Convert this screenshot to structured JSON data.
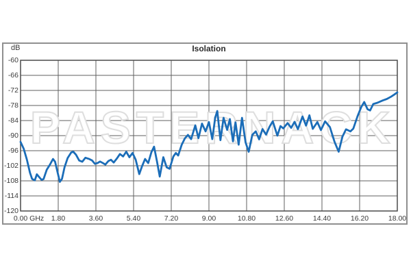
{
  "chart": {
    "title": "Isolation",
    "unit_label": "dB",
    "watermark": "PASTERNACK",
    "colors": {
      "line": "#1b6db8",
      "grid": "#5f5f5f",
      "plot_outline": "#4a4a4a",
      "outer_border": "#8f8f8f",
      "text": "#3a3a3a",
      "watermark_outline": "#dedede"
    },
    "x_axis": {
      "labels": [
        "0.00 GHz",
        "1.80",
        "3.60",
        "5.40",
        "7.20",
        "9.00",
        "10.80",
        "12.60",
        "14.40",
        "16.20",
        "18.00"
      ],
      "min": 0,
      "max": 18,
      "step": 1.8
    },
    "y_axis": {
      "labels": [
        "-60",
        "-66",
        "-72",
        "-78",
        "-84",
        "-90",
        "-96",
        "-102",
        "-108",
        "-114",
        "-120"
      ],
      "min": -120,
      "max": -60,
      "step": 6
    }
  },
  "chart_data": {
    "type": "line",
    "title": "Isolation",
    "xlabel": "GHz",
    "ylabel": "dB",
    "xlim": [
      0,
      18
    ],
    "ylim": [
      -120,
      -60
    ],
    "grid": true,
    "legend": false,
    "series": [
      {
        "name": "Isolation",
        "color": "#1b6db8",
        "points": [
          [
            0.0,
            -92.5
          ],
          [
            0.15,
            -95.2
          ],
          [
            0.3,
            -99.5
          ],
          [
            0.45,
            -104.8
          ],
          [
            0.55,
            -107.2
          ],
          [
            0.68,
            -107.8
          ],
          [
            0.78,
            -105.4
          ],
          [
            0.9,
            -106.6
          ],
          [
            1.0,
            -107.6
          ],
          [
            1.1,
            -107.3
          ],
          [
            1.25,
            -103.6
          ],
          [
            1.4,
            -101.6
          ],
          [
            1.55,
            -99.3
          ],
          [
            1.65,
            -100.4
          ],
          [
            1.78,
            -105.0
          ],
          [
            1.88,
            -108.4
          ],
          [
            1.98,
            -107.2
          ],
          [
            2.1,
            -102.6
          ],
          [
            2.25,
            -98.9
          ],
          [
            2.42,
            -96.7
          ],
          [
            2.52,
            -96.4
          ],
          [
            2.65,
            -97.6
          ],
          [
            2.8,
            -99.9
          ],
          [
            2.95,
            -100.4
          ],
          [
            3.1,
            -98.8
          ],
          [
            3.28,
            -99.3
          ],
          [
            3.42,
            -99.9
          ],
          [
            3.55,
            -101.2
          ],
          [
            3.68,
            -100.9
          ],
          [
            3.8,
            -100.3
          ],
          [
            3.95,
            -101.0
          ],
          [
            4.05,
            -101.5
          ],
          [
            4.2,
            -100.1
          ],
          [
            4.32,
            -99.6
          ],
          [
            4.45,
            -100.7
          ],
          [
            4.6,
            -99.1
          ],
          [
            4.75,
            -97.3
          ],
          [
            4.9,
            -98.3
          ],
          [
            5.05,
            -96.4
          ],
          [
            5.2,
            -98.6
          ],
          [
            5.35,
            -96.9
          ],
          [
            5.5,
            -99.6
          ],
          [
            5.67,
            -105.3
          ],
          [
            5.8,
            -102.3
          ],
          [
            5.95,
            -99.3
          ],
          [
            6.1,
            -100.9
          ],
          [
            6.25,
            -96.6
          ],
          [
            6.38,
            -94.4
          ],
          [
            6.52,
            -100.3
          ],
          [
            6.65,
            -106.3
          ],
          [
            6.82,
            -98.6
          ],
          [
            6.98,
            -102.6
          ],
          [
            7.12,
            -103.2
          ],
          [
            7.3,
            -98.3
          ],
          [
            7.42,
            -96.9
          ],
          [
            7.53,
            -97.9
          ],
          [
            7.7,
            -93.6
          ],
          [
            7.85,
            -91.1
          ],
          [
            8.0,
            -89.7
          ],
          [
            8.15,
            -91.4
          ],
          [
            8.35,
            -85.9
          ],
          [
            8.5,
            -91.0
          ],
          [
            8.67,
            -85.2
          ],
          [
            8.84,
            -88.3
          ],
          [
            9.0,
            -84.6
          ],
          [
            9.16,
            -91.4
          ],
          [
            9.3,
            -82.8
          ],
          [
            9.4,
            -80.2
          ],
          [
            9.55,
            -91.8
          ],
          [
            9.7,
            -82.9
          ],
          [
            9.87,
            -87.7
          ],
          [
            10.0,
            -83.4
          ],
          [
            10.15,
            -92.3
          ],
          [
            10.27,
            -84.7
          ],
          [
            10.42,
            -93.6
          ],
          [
            10.58,
            -82.9
          ],
          [
            10.75,
            -92.7
          ],
          [
            10.9,
            -96.4
          ],
          [
            11.07,
            -89.7
          ],
          [
            11.24,
            -88.3
          ],
          [
            11.4,
            -91.5
          ],
          [
            11.56,
            -87.4
          ],
          [
            11.73,
            -89.6
          ],
          [
            11.9,
            -86.4
          ],
          [
            12.05,
            -84.3
          ],
          [
            12.27,
            -90.0
          ],
          [
            12.42,
            -86.2
          ],
          [
            12.55,
            -87.1
          ],
          [
            12.76,
            -85.0
          ],
          [
            12.93,
            -86.9
          ],
          [
            13.09,
            -84.5
          ],
          [
            13.25,
            -87.4
          ],
          [
            13.47,
            -82.4
          ],
          [
            13.64,
            -86.0
          ],
          [
            13.8,
            -81.9
          ],
          [
            13.96,
            -87.3
          ],
          [
            14.18,
            -84.6
          ],
          [
            14.35,
            -87.8
          ],
          [
            14.55,
            -84.3
          ],
          [
            14.78,
            -86.6
          ],
          [
            15.0,
            -92.4
          ],
          [
            15.2,
            -96.4
          ],
          [
            15.38,
            -90.4
          ],
          [
            15.55,
            -87.5
          ],
          [
            15.76,
            -88.3
          ],
          [
            15.9,
            -87.2
          ],
          [
            16.1,
            -82.3
          ],
          [
            16.28,
            -78.6
          ],
          [
            16.42,
            -76.6
          ],
          [
            16.58,
            -79.5
          ],
          [
            16.7,
            -80.0
          ],
          [
            16.85,
            -77.4
          ],
          [
            17.05,
            -76.9
          ],
          [
            17.3,
            -76.0
          ],
          [
            17.5,
            -75.4
          ],
          [
            17.7,
            -74.5
          ],
          [
            17.85,
            -73.7
          ],
          [
            18.0,
            -72.8
          ]
        ]
      }
    ]
  }
}
